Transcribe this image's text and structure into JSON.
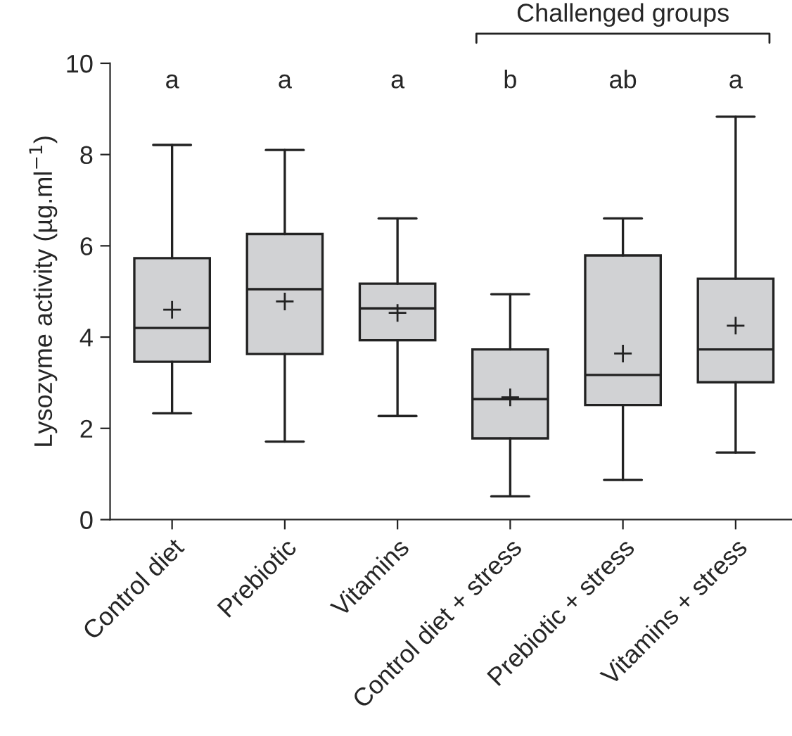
{
  "chart_data": {
    "type": "box",
    "ylabel": "Lysozyme activity (µg.ml$^{−1}$)",
    "categories": [
      "Control diet",
      "Prebiotic",
      "Vitamins",
      "Control diet + stress",
      "Prebiotic + stress",
      "Vitamins + stress"
    ],
    "boxes": [
      {
        "low": 2.33,
        "q1": 3.46,
        "median": 4.2,
        "q3": 5.73,
        "high": 8.21,
        "mean": 4.6
      },
      {
        "low": 1.71,
        "q1": 3.63,
        "median": 5.05,
        "q3": 6.26,
        "high": 8.1,
        "mean": 4.78
      },
      {
        "low": 2.27,
        "q1": 3.93,
        "median": 4.63,
        "q3": 5.17,
        "high": 6.6,
        "mean": 4.53
      },
      {
        "low": 0.51,
        "q1": 1.78,
        "median": 2.64,
        "q3": 3.73,
        "high": 4.94,
        "mean": 2.68
      },
      {
        "low": 0.87,
        "q1": 2.51,
        "median": 3.17,
        "q3": 5.79,
        "high": 6.6,
        "mean": 3.64
      },
      {
        "low": 1.47,
        "q1": 3.01,
        "median": 3.73,
        "q3": 5.28,
        "high": 8.83,
        "mean": 4.25
      }
    ],
    "color": "#d1d2d4",
    "ylim": [
      0,
      10
    ],
    "yticks": [
      0,
      2,
      4,
      6,
      8,
      10
    ],
    "grid": false,
    "marker": "cross",
    "annotations": [
      "a",
      "a",
      "a",
      "b",
      "ab",
      "a",
      "Challenged groups"
    ]
  }
}
